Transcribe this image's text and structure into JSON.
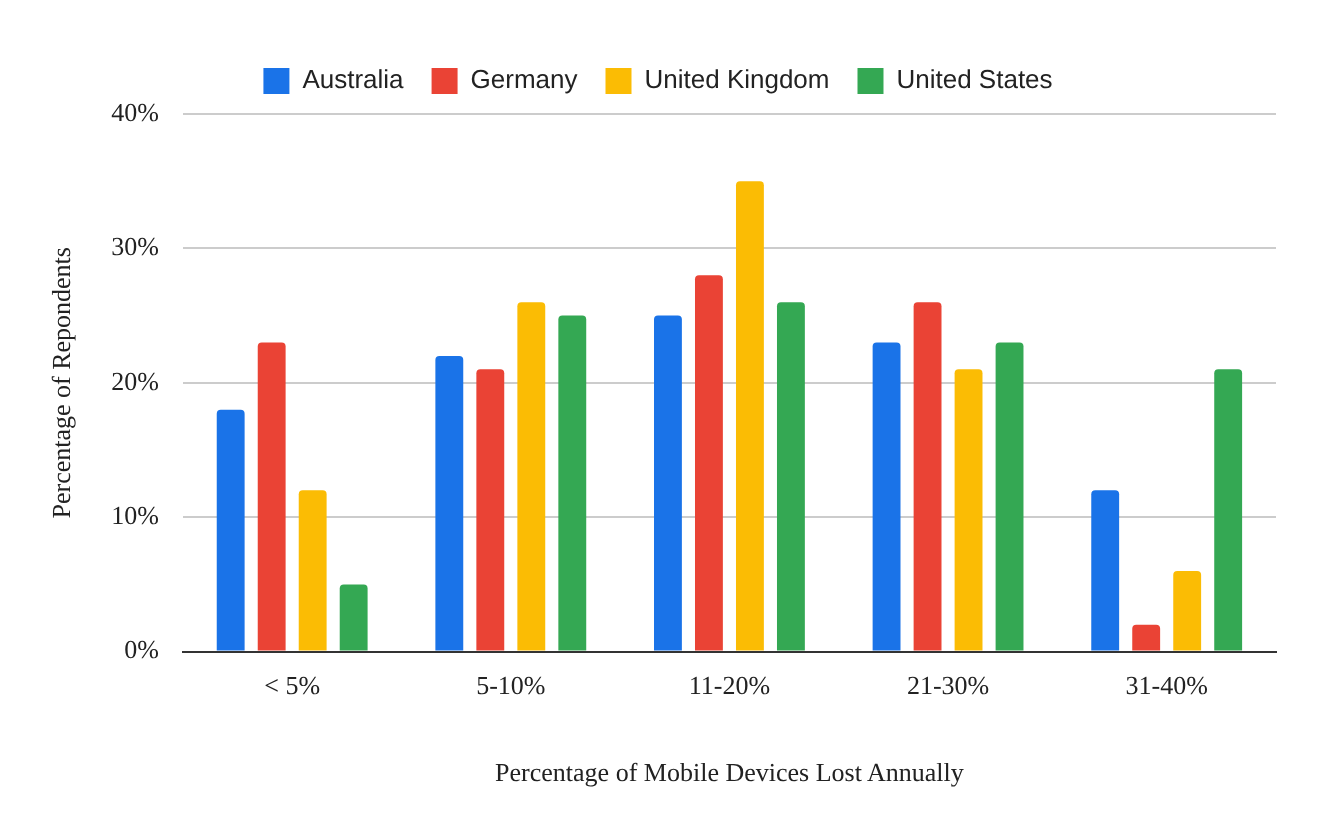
{
  "chart_data": {
    "type": "bar",
    "xlabel": "Percentage of Mobile Devices Lost Annually",
    "ylabel": "Percentage of Repondents",
    "categories": [
      "< 5%",
      "5-10%",
      "11-20%",
      "21-30%",
      "31-40%"
    ],
    "series": [
      {
        "name": "Australia",
        "color": "#1a73e8",
        "values": [
          18,
          22,
          25,
          23,
          12
        ]
      },
      {
        "name": "Germany",
        "color": "#ea4335",
        "values": [
          23,
          21,
          28,
          26,
          2
        ]
      },
      {
        "name": "United Kingdom",
        "color": "#fbbc04",
        "values": [
          12,
          26,
          35,
          21,
          6
        ]
      },
      {
        "name": "United States",
        "color": "#34a853",
        "values": [
          5,
          25,
          26,
          23,
          21
        ]
      }
    ],
    "ylim": [
      0,
      40
    ],
    "yticks": [
      {
        "value": 0,
        "label": "0%"
      },
      {
        "value": 10,
        "label": "10%"
      },
      {
        "value": 20,
        "label": "20%"
      },
      {
        "value": 30,
        "label": "30%"
      },
      {
        "value": 40,
        "label": "40%"
      }
    ],
    "grid": "y",
    "legend": "top"
  }
}
